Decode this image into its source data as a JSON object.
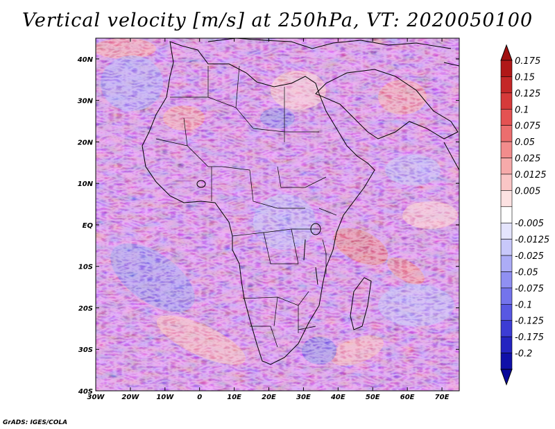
{
  "title": "Vertical velocity [m/s] at 250hPa, VT: 2020050100",
  "credit": "GrADS: IGES/COLA",
  "map": {
    "region": "Africa",
    "lon_range": [
      -30,
      75
    ],
    "lat_range": [
      -40,
      45
    ],
    "lat_ticks": [
      {
        "value": 40,
        "label": "40N"
      },
      {
        "value": 30,
        "label": "30N"
      },
      {
        "value": 20,
        "label": "20N"
      },
      {
        "value": 10,
        "label": "10N"
      },
      {
        "value": 0,
        "label": "EQ"
      },
      {
        "value": -10,
        "label": "10S"
      },
      {
        "value": -20,
        "label": "20S"
      },
      {
        "value": -30,
        "label": "30S"
      },
      {
        "value": -40,
        "label": "40S"
      }
    ],
    "lon_ticks": [
      {
        "value": -30,
        "label": "30W"
      },
      {
        "value": -20,
        "label": "20W"
      },
      {
        "value": -10,
        "label": "10W"
      },
      {
        "value": 0,
        "label": "0"
      },
      {
        "value": 10,
        "label": "10E"
      },
      {
        "value": 20,
        "label": "20E"
      },
      {
        "value": 30,
        "label": "30E"
      },
      {
        "value": 40,
        "label": "40E"
      },
      {
        "value": 50,
        "label": "50E"
      },
      {
        "value": 60,
        "label": "60E"
      },
      {
        "value": 70,
        "label": "70E"
      }
    ]
  },
  "colorbar": {
    "levels": [
      {
        "label": "0.175",
        "color": "#b01818"
      },
      {
        "label": "0.15",
        "color": "#c42828"
      },
      {
        "label": "0.125",
        "color": "#d63a3a"
      },
      {
        "label": "0.1",
        "color": "#e45252"
      },
      {
        "label": "0.075",
        "color": "#ec6e6e"
      },
      {
        "label": "0.05",
        "color": "#f28c8c"
      },
      {
        "label": "0.025",
        "color": "#f6aaaa"
      },
      {
        "label": "0.0125",
        "color": "#fac6c6"
      },
      {
        "label": "0.005",
        "color": "#fde2e2"
      },
      {
        "label": "",
        "color": "#ffffff"
      },
      {
        "label": "-0.005",
        "color": "#e4e4fd"
      },
      {
        "label": "-0.0125",
        "color": "#c8c8fa"
      },
      {
        "label": "-0.025",
        "color": "#acacf6"
      },
      {
        "label": "-0.05",
        "color": "#9090f2"
      },
      {
        "label": "-0.075",
        "color": "#7474ec"
      },
      {
        "label": "-0.1",
        "color": "#5858e2"
      },
      {
        "label": "-0.125",
        "color": "#3c3cd4"
      },
      {
        "label": "-0.175",
        "color": "#2424c0"
      },
      {
        "label": "-0.2",
        "color": "#1010a8"
      }
    ],
    "max_color": "#a01010",
    "min_color": "#08089a"
  }
}
